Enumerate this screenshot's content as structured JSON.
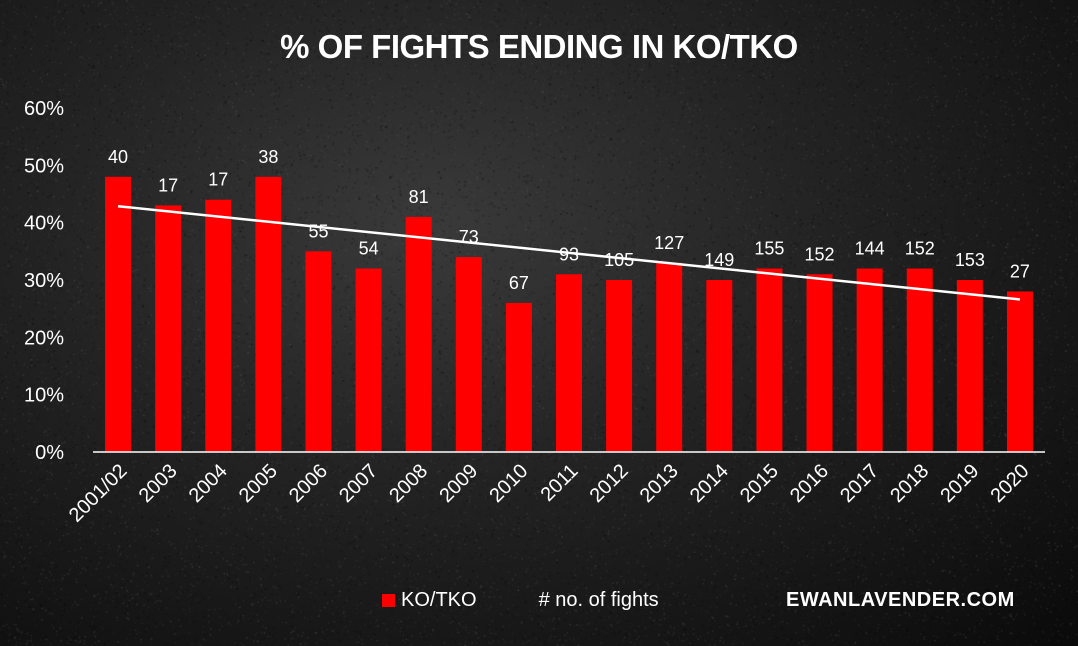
{
  "chart_data": {
    "type": "bar",
    "title": "% OF FIGHTS ENDING IN KO/TKO",
    "categories": [
      "2001/02",
      "2003",
      "2004",
      "2005",
      "2006",
      "2007",
      "2008",
      "2009",
      "2010",
      "2011",
      "2012",
      "2013",
      "2014",
      "2015",
      "2016",
      "2017",
      "2018",
      "2019",
      "2020"
    ],
    "series": [
      {
        "name": "KO/TKO",
        "color": "#ff0000",
        "values": [
          48,
          43,
          44,
          48,
          35,
          32,
          41,
          34,
          26,
          31,
          30,
          33,
          30,
          32,
          31,
          32,
          32,
          30,
          28
        ]
      }
    ],
    "data_labels": {
      "name": "# no. of fights",
      "values": [
        "40",
        "17",
        "17",
        "38",
        "55",
        "54",
        "81",
        "73",
        "67",
        "93",
        "105",
        "127",
        "149",
        "155",
        "152",
        "144",
        "152",
        "153",
        "27"
      ]
    },
    "trendline": {
      "type": "linear",
      "color": "#ffffff"
    },
    "yticks": [
      "0%",
      "10%",
      "20%",
      "30%",
      "40%",
      "50%",
      "60%"
    ],
    "ylim": [
      0,
      60
    ],
    "grid": false,
    "legend_position": "bottom"
  },
  "legend": {
    "bars_label": "KO/TKO",
    "count_label": "# no. of fights"
  },
  "watermark": "EWANLAVENDER.COM",
  "colors": {
    "bar": "#ff0000",
    "text": "#ffffff",
    "background": "#1c1c1c"
  }
}
